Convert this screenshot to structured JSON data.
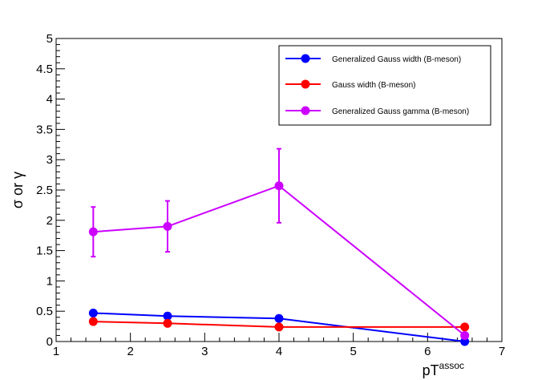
{
  "chart_data": {
    "type": "line",
    "title": "",
    "xlabel_main": "pT",
    "xlabel_sup": "assoc",
    "ylabel": "σ or γ",
    "xlim": [
      1,
      7
    ],
    "ylim": [
      0,
      5
    ],
    "x_ticks": [
      1,
      2,
      3,
      4,
      5,
      6,
      7
    ],
    "y_ticks": [
      0,
      0.5,
      1,
      1.5,
      2,
      2.5,
      3,
      3.5,
      4,
      4.5,
      5
    ],
    "x_tick_labels": [
      "1",
      "2",
      "3",
      "4",
      "5",
      "6",
      "7"
    ],
    "y_tick_labels": [
      "0",
      "0.5",
      "1",
      "1.5",
      "2",
      "2.5",
      "3",
      "3.5",
      "4",
      "4.5",
      "5"
    ],
    "grid": false,
    "legend_position": "top-right",
    "series": [
      {
        "name": "Generalized Gauss width (B-meson)",
        "color": "#0000ff",
        "x": [
          1.5,
          2.5,
          4,
          6.5
        ],
        "y": [
          0.47,
          0.42,
          0.38,
          0.0
        ],
        "yerr": [
          0,
          0,
          0,
          0
        ]
      },
      {
        "name": "Gauss width (B-meson)",
        "color": "#ff0000",
        "x": [
          1.5,
          2.5,
          4,
          6.5
        ],
        "y": [
          0.33,
          0.3,
          0.24,
          0.24
        ],
        "yerr": [
          0,
          0,
          0,
          0
        ]
      },
      {
        "name": "Generalized Gauss gamma (B-meson)",
        "color": "#cc00ff",
        "x": [
          1.5,
          2.5,
          4,
          6.5
        ],
        "y": [
          1.81,
          1.9,
          2.57,
          0.1
        ],
        "yerr": [
          0.41,
          0.42,
          0.61,
          0
        ]
      }
    ]
  }
}
